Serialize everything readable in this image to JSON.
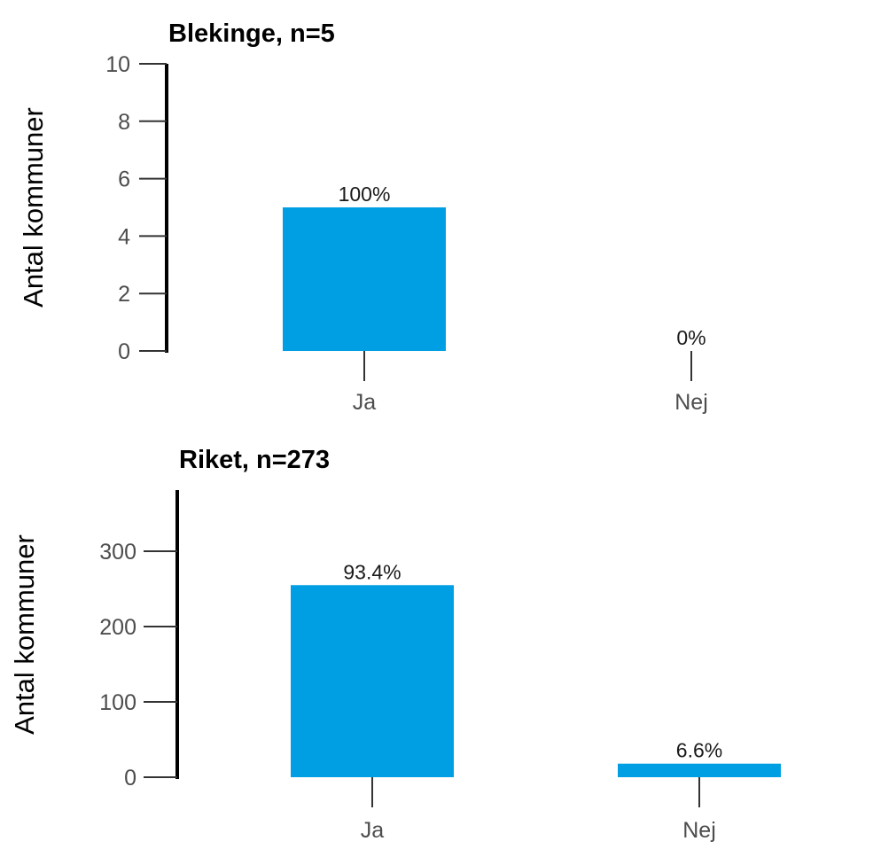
{
  "chart_data": [
    {
      "type": "bar",
      "title": "Blekinge, n=5",
      "ylabel": "Antal kommuner",
      "xlabel": "",
      "categories": [
        "Ja",
        "Nej"
      ],
      "values": [
        5,
        0
      ],
      "data_labels": [
        "100%",
        "0%"
      ],
      "ylim": [
        0,
        10
      ],
      "yticks": [
        0,
        2,
        4,
        6,
        8,
        10
      ],
      "ytick_labels": [
        "0",
        "2",
        "4",
        "6",
        "8",
        "10"
      ],
      "bar_color": "#009fe3",
      "grid": false,
      "legend": "none"
    },
    {
      "type": "bar",
      "title": "Riket, n=273",
      "ylabel": "Antal kommuner",
      "xlabel": "",
      "categories": [
        "Ja",
        "Nej"
      ],
      "values": [
        255,
        18
      ],
      "data_labels": [
        "93.4%",
        "6.6%"
      ],
      "ylim": [
        0,
        380
      ],
      "yticks": [
        0,
        100,
        200,
        300
      ],
      "ytick_labels": [
        "0",
        "100",
        "200",
        "300"
      ],
      "bar_color": "#009fe3",
      "grid": false,
      "legend": "none"
    }
  ]
}
